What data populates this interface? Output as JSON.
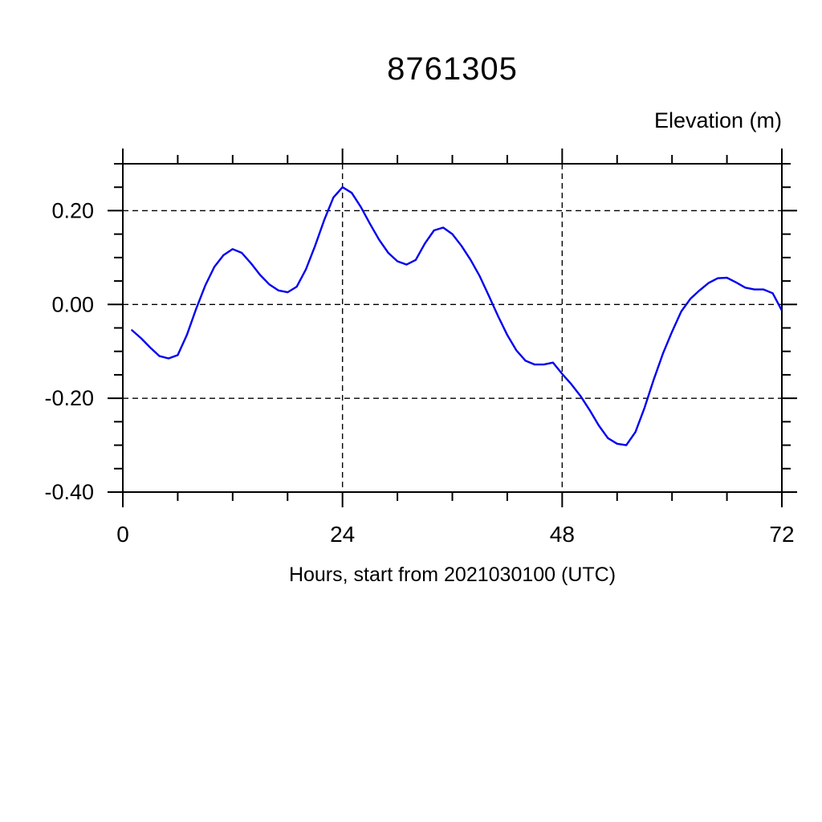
{
  "chart_data": {
    "type": "line",
    "title": "8761305",
    "y_axis_title": "Elevation (m)",
    "x_axis_title": "Hours, start from 2021030100 (UTC)",
    "xlim": [
      0,
      72
    ],
    "ylim": [
      -0.4,
      0.3
    ],
    "x_major_ticks": [
      {
        "value": 0,
        "label": "0"
      },
      {
        "value": 24,
        "label": "24"
      },
      {
        "value": 48,
        "label": "48"
      },
      {
        "value": 72,
        "label": "72"
      }
    ],
    "x_minor_step": 6,
    "y_major_ticks": [
      {
        "value": 0.2,
        "label": "0.20"
      },
      {
        "value": 0.0,
        "label": "0.00"
      },
      {
        "value": -0.2,
        "label": "-0.20"
      },
      {
        "value": -0.4,
        "label": "-0.40"
      }
    ],
    "y_minor_step": 0.05,
    "x_gridlines": [
      24,
      48,
      72
    ],
    "y_gridlines": [
      0.2,
      0.0,
      -0.2,
      -0.4
    ],
    "grid_style": "dashed",
    "grid_color": "#000000",
    "frame_color": "#000000",
    "line_color": "#0000ee",
    "legend": null,
    "series": [
      {
        "name": "elevation",
        "x": [
          1,
          2,
          3,
          4,
          5,
          6,
          7,
          8,
          9,
          10,
          11,
          12,
          13,
          14,
          15,
          16,
          17,
          18,
          19,
          20,
          21,
          22,
          23,
          24,
          25,
          26,
          27,
          28,
          29,
          30,
          31,
          32,
          33,
          34,
          35,
          36,
          37,
          38,
          39,
          40,
          41,
          42,
          43,
          44,
          45,
          46,
          47,
          48,
          49,
          50,
          51,
          52,
          53,
          54,
          55,
          56,
          57,
          58,
          59,
          60,
          61,
          62,
          63,
          64,
          65,
          66,
          67,
          68,
          69,
          70,
          71,
          72
        ],
        "values": [
          -0.055,
          -0.072,
          -0.092,
          -0.11,
          -0.115,
          -0.108,
          -0.065,
          -0.01,
          0.04,
          0.08,
          0.105,
          0.118,
          0.11,
          0.088,
          0.063,
          0.043,
          0.03,
          0.026,
          0.038,
          0.075,
          0.125,
          0.18,
          0.228,
          0.25,
          0.238,
          0.208,
          0.172,
          0.138,
          0.11,
          0.092,
          0.085,
          0.095,
          0.13,
          0.158,
          0.164,
          0.15,
          0.125,
          0.095,
          0.06,
          0.018,
          -0.025,
          -0.065,
          -0.098,
          -0.12,
          -0.128,
          -0.128,
          -0.124,
          -0.148,
          -0.17,
          -0.195,
          -0.225,
          -0.258,
          -0.285,
          -0.297,
          -0.3,
          -0.272,
          -0.22,
          -0.16,
          -0.105,
          -0.058,
          -0.015,
          0.012,
          0.03,
          0.046,
          0.056,
          0.057,
          0.047,
          0.036,
          0.032,
          0.032,
          0.024,
          -0.013
        ]
      }
    ]
  }
}
